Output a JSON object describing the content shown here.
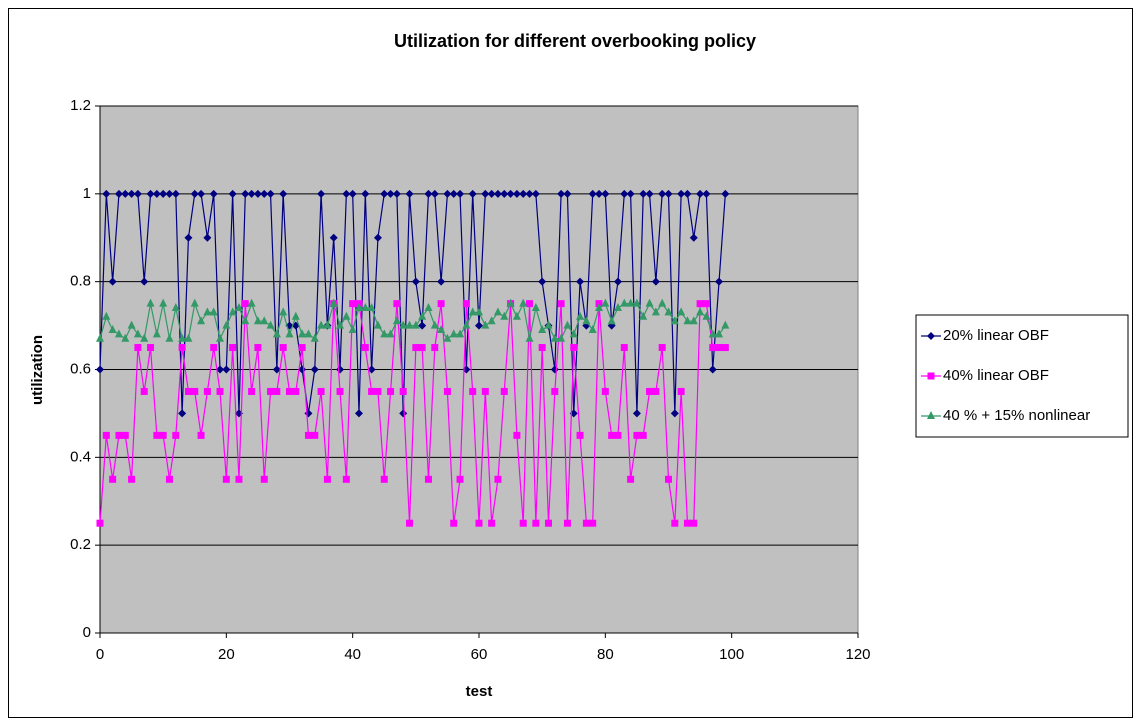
{
  "chart_data": {
    "type": "line",
    "title": "Utilization for different overbooking policy",
    "xlabel": "test",
    "ylabel": "utilization",
    "x": [
      0,
      1,
      2,
      3,
      4,
      5,
      6,
      7,
      8,
      9,
      10,
      11,
      12,
      13,
      14,
      15,
      16,
      17,
      18,
      19,
      20,
      21,
      22,
      23,
      24,
      25,
      26,
      27,
      28,
      29,
      30,
      31,
      32,
      33,
      34,
      35,
      36,
      37,
      38,
      39,
      40,
      41,
      42,
      43,
      44,
      45,
      46,
      47,
      48,
      49,
      50,
      51,
      52,
      53,
      54,
      55,
      56,
      57,
      58,
      59,
      60,
      61,
      62,
      63,
      64,
      65,
      66,
      67,
      68,
      69,
      70,
      71,
      72,
      73,
      74,
      75,
      76,
      77,
      78,
      79,
      80,
      81,
      82,
      83,
      84,
      85,
      86,
      87,
      88,
      89,
      90,
      91,
      92,
      93,
      94,
      95,
      96,
      97,
      98,
      99
    ],
    "series": [
      {
        "name": "20% linear OBF",
        "color": "#000080",
        "marker": "diamond",
        "values": [
          0.6,
          1,
          0.8,
          1,
          1,
          1,
          1,
          0.8,
          1,
          1,
          1,
          1,
          1,
          0.5,
          0.9,
          1,
          1,
          0.9,
          1,
          0.6,
          0.6,
          1,
          0.5,
          1,
          1,
          1,
          1,
          1,
          0.6,
          1,
          0.7,
          0.7,
          0.6,
          0.5,
          0.6,
          1,
          0.7,
          0.9,
          0.6,
          1,
          1,
          0.5,
          1,
          0.6,
          0.9,
          1,
          1,
          1,
          0.5,
          1,
          0.8,
          0.7,
          1,
          1,
          0.8,
          1,
          1,
          1,
          0.6,
          1,
          0.7,
          1,
          1,
          1,
          1,
          1,
          1,
          1,
          1,
          1,
          0.8,
          0.7,
          0.6,
          1,
          1,
          0.5,
          0.8,
          0.7,
          1,
          1,
          1,
          0.7,
          0.8,
          1,
          1,
          0.5,
          1,
          1,
          0.8,
          1,
          1,
          0.5,
          1,
          1,
          0.9,
          1,
          1,
          0.6,
          0.8,
          1
        ]
      },
      {
        "name": "40% linear OBF",
        "color": "#ff00ff",
        "marker": "square",
        "values": [
          0.25,
          0.45,
          0.35,
          0.45,
          0.45,
          0.35,
          0.65,
          0.55,
          0.65,
          0.45,
          0.45,
          0.35,
          0.45,
          0.65,
          0.55,
          0.55,
          0.45,
          0.55,
          0.65,
          0.55,
          0.35,
          0.65,
          0.35,
          0.75,
          0.55,
          0.65,
          0.35,
          0.55,
          0.55,
          0.65,
          0.55,
          0.55,
          0.65,
          0.45,
          0.45,
          0.55,
          0.35,
          0.75,
          0.55,
          0.35,
          0.75,
          0.75,
          0.65,
          0.55,
          0.55,
          0.35,
          0.55,
          0.75,
          0.55,
          0.25,
          0.65,
          0.65,
          0.35,
          0.65,
          0.75,
          0.55,
          0.25,
          0.35,
          0.75,
          0.55,
          0.25,
          0.55,
          0.25,
          0.35,
          0.55,
          0.75,
          0.45,
          0.25,
          0.75,
          0.25,
          0.65,
          0.25,
          0.55,
          0.75,
          0.25,
          0.65,
          0.45,
          0.25,
          0.25,
          0.75,
          0.55,
          0.45,
          0.45,
          0.65,
          0.35,
          0.45,
          0.45,
          0.55,
          0.55,
          0.65,
          0.35,
          0.25,
          0.55,
          0.25,
          0.25,
          0.75,
          0.75,
          0.65,
          0.65,
          0.65
        ]
      },
      {
        "name": "40 % + 15% nonlinear",
        "color": "#339966",
        "marker": "triangle",
        "values": [
          0.67,
          0.72,
          0.69,
          0.68,
          0.67,
          0.7,
          0.68,
          0.67,
          0.75,
          0.68,
          0.75,
          0.67,
          0.74,
          0.67,
          0.67,
          0.75,
          0.71,
          0.73,
          0.73,
          0.67,
          0.7,
          0.73,
          0.74,
          0.71,
          0.75,
          0.71,
          0.71,
          0.7,
          0.68,
          0.73,
          0.68,
          0.72,
          0.68,
          0.68,
          0.67,
          0.7,
          0.7,
          0.75,
          0.7,
          0.72,
          0.69,
          0.74,
          0.74,
          0.74,
          0.7,
          0.68,
          0.68,
          0.71,
          0.7,
          0.7,
          0.7,
          0.72,
          0.74,
          0.7,
          0.69,
          0.67,
          0.68,
          0.68,
          0.7,
          0.73,
          0.73,
          0.7,
          0.71,
          0.73,
          0.72,
          0.75,
          0.72,
          0.75,
          0.67,
          0.74,
          0.69,
          0.7,
          0.67,
          0.67,
          0.7,
          0.68,
          0.72,
          0.71,
          0.69,
          0.74,
          0.75,
          0.71,
          0.74,
          0.75,
          0.75,
          0.75,
          0.72,
          0.75,
          0.73,
          0.75,
          0.73,
          0.71,
          0.73,
          0.71,
          0.71,
          0.73,
          0.72,
          0.68,
          0.68,
          0.7
        ]
      }
    ],
    "xlim": [
      0,
      120
    ],
    "xticks": [
      0,
      20,
      40,
      60,
      80,
      100,
      120
    ],
    "ylim": [
      0,
      1.2
    ],
    "yticks": [
      0,
      0.2,
      0.4,
      0.6,
      0.8,
      1,
      1.2
    ],
    "grid": true,
    "legend": "right",
    "plot_background": "#c0c0c0"
  }
}
